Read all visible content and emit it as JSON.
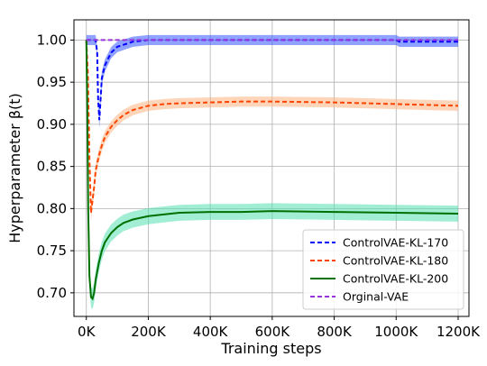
{
  "chart_data": {
    "type": "line",
    "title": "",
    "xlabel": "Training steps",
    "ylabel": "Hyperparameter β(t)",
    "xlim": [
      -40000,
      1235000
    ],
    "ylim": [
      0.672,
      1.024
    ],
    "x_ticks": [
      0,
      200000,
      400000,
      600000,
      800000,
      1000000,
      1200000
    ],
    "x_tick_labels": [
      "0K",
      "200K",
      "400K",
      "600K",
      "800K",
      "1000K",
      "1200K"
    ],
    "y_ticks": [
      0.7,
      0.75,
      0.8,
      0.85,
      0.9,
      0.95,
      1.0
    ],
    "y_tick_labels": [
      "0.70",
      "0.75",
      "0.80",
      "0.85",
      "0.90",
      "0.95",
      "1.00"
    ],
    "grid": true,
    "legend_position": "bottom-right",
    "series": [
      {
        "name": "ControlVAE-KL-170",
        "color": "#0000ff",
        "band_color": "#3355ff",
        "line_style": "dashed",
        "x": [
          0,
          5000,
          10000,
          20000,
          30000,
          35000,
          38000,
          42000,
          50000,
          60000,
          80000,
          100000,
          150000,
          200000,
          220000,
          400000,
          600000,
          800000,
          1000000,
          1010000,
          1050000,
          1200000
        ],
        "y": [
          1.0,
          1.0,
          1.0,
          1.0,
          1.0,
          0.985,
          0.93,
          0.905,
          0.955,
          0.97,
          0.985,
          0.992,
          0.998,
          1.0,
          1.0,
          1.0,
          1.0,
          1.0,
          1.0,
          0.998,
          0.998,
          0.998
        ]
      },
      {
        "name": "ControlVAE-KL-180",
        "color": "#ff4500",
        "band_color": "#ffb380",
        "line_style": "dashed",
        "x": [
          0,
          5000,
          10000,
          15000,
          20000,
          25000,
          30000,
          40000,
          50000,
          60000,
          80000,
          100000,
          120000,
          150000,
          200000,
          250000,
          300000,
          400000,
          500000,
          600000,
          800000,
          1000000,
          1200000
        ],
        "y": [
          1.0,
          0.96,
          0.86,
          0.795,
          0.81,
          0.825,
          0.845,
          0.862,
          0.875,
          0.885,
          0.897,
          0.905,
          0.911,
          0.917,
          0.922,
          0.924,
          0.925,
          0.926,
          0.927,
          0.927,
          0.926,
          0.924,
          0.922
        ]
      },
      {
        "name": "ControlVAE-KL-200",
        "color": "#007000",
        "band_color": "#55e0b0",
        "line_style": "solid",
        "x": [
          0,
          3000,
          6000,
          10000,
          15000,
          20000,
          25000,
          30000,
          40000,
          50000,
          60000,
          80000,
          100000,
          120000,
          150000,
          200000,
          250000,
          300000,
          400000,
          500000,
          600000,
          800000,
          1000000,
          1200000
        ],
        "y": [
          1.0,
          0.92,
          0.8,
          0.72,
          0.695,
          0.693,
          0.7,
          0.715,
          0.735,
          0.75,
          0.76,
          0.771,
          0.778,
          0.783,
          0.787,
          0.791,
          0.793,
          0.795,
          0.796,
          0.796,
          0.797,
          0.796,
          0.795,
          0.794
        ]
      },
      {
        "name": "Orginal-VAE",
        "color": "#9933dd",
        "line_style": "dashed",
        "x": [
          0,
          1200000
        ],
        "y": [
          1.0,
          1.0
        ]
      }
    ]
  }
}
